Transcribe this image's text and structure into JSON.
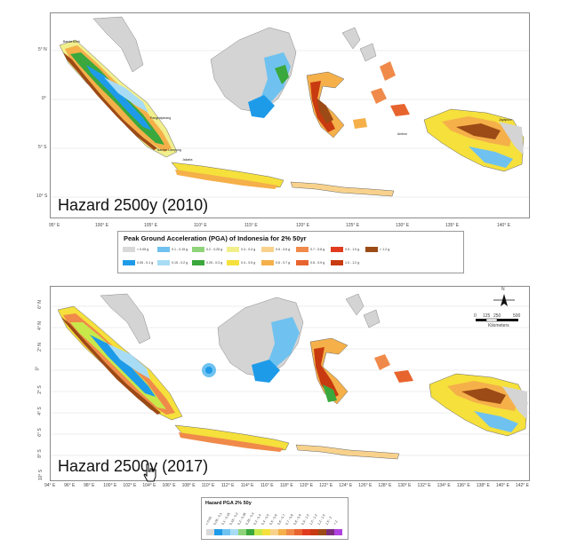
{
  "maps": {
    "top": {
      "title": "Hazard 2500y  (2010)",
      "lon_ticks": [
        "95° E",
        "100° E",
        "105° E",
        "110° E",
        "115° E",
        "120° E",
        "125° E",
        "130° E",
        "135° E",
        "140° E"
      ],
      "lat_ticks": [
        "5° N",
        "0°",
        "5° S",
        "10° S"
      ],
      "legend": {
        "title": "Peak Ground Acceleration (PGA) of Indonesia for 2% 50yr",
        "items": [
          {
            "label": "< 0.05 g",
            "color": "#d9d9d9"
          },
          {
            "label": "0.05 - 0.1 g",
            "color": "#1e9be8"
          },
          {
            "label": "0.1 - 0.15 g",
            "color": "#6fc2f0"
          },
          {
            "label": "0.15 - 0.2 g",
            "color": "#a8dcf5"
          },
          {
            "label": "0.2 - 0.25 g",
            "color": "#8fd47a"
          },
          {
            "label": "0.25 - 0.3 g",
            "color": "#3aa83c"
          },
          {
            "label": "0.3 - 0.4 g",
            "color": "#f1ef8c"
          },
          {
            "label": "0.4 - 0.5 g",
            "color": "#f5e03c"
          },
          {
            "label": "0.5 - 0.6 g",
            "color": "#f8d28c"
          },
          {
            "label": "0.6 - 0.7 g",
            "color": "#f5b04a"
          },
          {
            "label": "0.7 - 0.8 g",
            "color": "#f08a4a"
          },
          {
            "label": "0.8 - 0.9 g",
            "color": "#e8642e"
          },
          {
            "label": "0.9 - 1.0 g",
            "color": "#e23a1e"
          },
          {
            "label": "1.0 - 1.2 g",
            "color": "#c83a10"
          },
          {
            "label": "> 1.2 g",
            "color": "#9c4a16"
          }
        ]
      },
      "place_labels": [
        "Banda Aceh",
        "Pangkalpinang",
        "Bandar Lampung",
        "Jakarta",
        "Ambon",
        "Jayapura"
      ]
    },
    "bottom": {
      "title": "Hazard 2500y (2017)",
      "lon_ticks": [
        "94° E",
        "96° E",
        "98° E",
        "100° E",
        "102° E",
        "104° E",
        "106° E",
        "108° E",
        "110° E",
        "112° E",
        "114° E",
        "116° E",
        "118° E",
        "120° E",
        "122° E",
        "124° E",
        "126° E",
        "128° E",
        "130° E",
        "132° E",
        "134° E",
        "136° E",
        "138° E",
        "140° E",
        "142° E"
      ],
      "lat_ticks": [
        "6° N",
        "4° N",
        "2° N",
        "0°",
        "2° S",
        "4° S",
        "6° S",
        "8° S",
        "10° S"
      ],
      "legend": {
        "title": "Hazard PGA 2% 50y",
        "items": [
          {
            "label": "< 0.05",
            "color": "#d9d9d9"
          },
          {
            "label": "0.05 - 0.1",
            "color": "#1e9be8"
          },
          {
            "label": "0.1 - 0.15",
            "color": "#6fc2f0"
          },
          {
            "label": "0.15 - 0.2",
            "color": "#a8dcf5"
          },
          {
            "label": "0.2 - 0.25",
            "color": "#8fd47a"
          },
          {
            "label": "0.25 - 0.3",
            "color": "#3aa83c"
          },
          {
            "label": "0.3 - 0.4",
            "color": "#c8e84a"
          },
          {
            "label": "0.4 - 0.5",
            "color": "#f5e03c"
          },
          {
            "label": "0.5 - 0.6",
            "color": "#f8d28c"
          },
          {
            "label": "0.6 - 0.7",
            "color": "#f5b04a"
          },
          {
            "label": "0.7 - 0.8",
            "color": "#f08a4a"
          },
          {
            "label": "0.8 - 0.9",
            "color": "#e8642e"
          },
          {
            "label": "0.9 - 1.0",
            "color": "#e23a1e"
          },
          {
            "label": "1.0 - 1.2",
            "color": "#c83a10"
          },
          {
            "label": "1.2 - 1.5",
            "color": "#9c4a16"
          },
          {
            "label": "1.5 - 2",
            "color": "#7a2e7a"
          },
          {
            "label": "> 2",
            "color": "#b040e0"
          }
        ]
      },
      "scale_bar": {
        "labels": [
          "0",
          "125",
          "250",
          "500"
        ],
        "unit": "Kilometers"
      },
      "north_arrow": {
        "label": "N"
      }
    }
  },
  "cursor_icon": "pointer-hand-icon"
}
